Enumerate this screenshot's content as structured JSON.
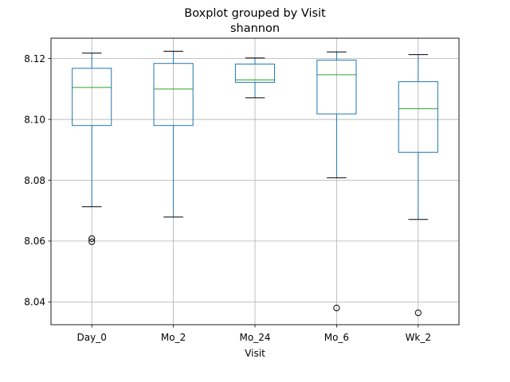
{
  "chart_data": {
    "type": "boxplot",
    "title": "Boxplot grouped by Visit",
    "subtitle": "shannon",
    "xlabel": "Visit",
    "ylabel": "",
    "ylim": [
      8.0325,
      8.1267
    ],
    "yticks": [
      8.04,
      8.06,
      8.08,
      8.1,
      8.12
    ],
    "ytick_labels": [
      "8.04",
      "8.06",
      "8.08",
      "8.10",
      "8.12"
    ],
    "grid": true,
    "categories": [
      "Day_0",
      "Mo_2",
      "Mo_24",
      "Mo_6",
      "Wk_2"
    ],
    "boxes": [
      {
        "category": "Day_0",
        "whisker_low": 8.0713,
        "q1": 8.098,
        "median": 8.1105,
        "q3": 8.1168,
        "whisker_high": 8.1218,
        "outliers": [
          8.0608,
          8.0598
        ]
      },
      {
        "category": "Mo_2",
        "whisker_low": 8.0679,
        "q1": 8.098,
        "median": 8.11,
        "q3": 8.1184,
        "whisker_high": 8.1224,
        "outliers": []
      },
      {
        "category": "Mo_24",
        "whisker_low": 8.1071,
        "q1": 8.1122,
        "median": 8.113,
        "q3": 8.1182,
        "whisker_high": 8.1202,
        "outliers": []
      },
      {
        "category": "Mo_6",
        "whisker_low": 8.0808,
        "q1": 8.1018,
        "median": 8.1147,
        "q3": 8.1195,
        "whisker_high": 8.1222,
        "outliers": [
          8.038
        ]
      },
      {
        "category": "Wk_2",
        "whisker_low": 8.0671,
        "q1": 8.0892,
        "median": 8.1035,
        "q3": 8.1124,
        "whisker_high": 8.1213,
        "outliers": [
          8.0364
        ]
      }
    ],
    "colors": {
      "box": "#1f77b4",
      "median": "#2ca02c",
      "whisker": "#1f77b4",
      "cap": "#000000",
      "outlier": "#000000",
      "grid": "#b0b0b0",
      "frame": "#000000"
    }
  }
}
